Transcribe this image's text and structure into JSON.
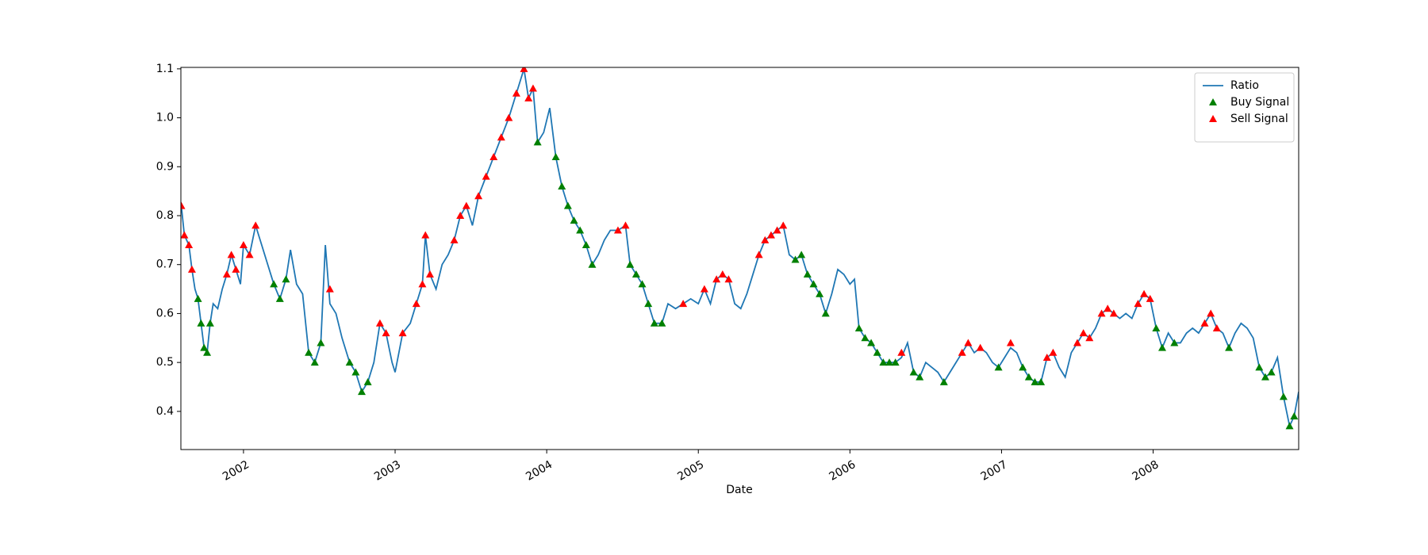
{
  "chart_data": {
    "type": "line",
    "xlabel": "Date",
    "xlim": [
      2001.587,
      2008.96
    ],
    "xticks": [
      2002,
      2003,
      2004,
      2005,
      2006,
      2007,
      2008
    ],
    "ylim": [
      0.322,
      1.103
    ],
    "yticks": [
      0.4,
      0.5,
      0.6,
      0.7,
      0.8,
      0.9,
      {
        "value": 1,
        "label": "1.0"
      },
      1.1
    ],
    "legend": "upper right",
    "series": [
      {
        "name": "Ratio",
        "type": "line",
        "color": "#1f77b4",
        "x": [
          2001.59,
          2001.61,
          2001.64,
          2001.66,
          2001.68,
          2001.7,
          2001.72,
          2001.74,
          2001.76,
          2001.78,
          2001.8,
          2001.83,
          2001.86,
          2001.89,
          2001.92,
          2001.95,
          2001.98,
          2002.0,
          2002.04,
          2002.08,
          2002.12,
          2002.16,
          2002.2,
          2002.24,
          2002.28,
          2002.31,
          2002.35,
          2002.39,
          2002.43,
          2002.47,
          2002.51,
          2002.54,
          2002.57,
          2002.61,
          2002.65,
          2002.7,
          2002.74,
          2002.78,
          2002.82,
          2002.86,
          2002.9,
          2002.94,
          2002.98,
          2003.0,
          2003.05,
          2003.1,
          2003.14,
          2003.18,
          2003.2,
          2003.23,
          2003.27,
          2003.31,
          2003.35,
          2003.39,
          2003.43,
          2003.47,
          2003.51,
          2003.55,
          2003.6,
          2003.65,
          2003.7,
          2003.75,
          2003.8,
          2003.85,
          2003.88,
          2003.91,
          2003.94,
          2003.98,
          2004.02,
          2004.06,
          2004.1,
          2004.14,
          2004.18,
          2004.22,
          2004.26,
          2004.3,
          2004.34,
          2004.38,
          2004.42,
          2004.47,
          2004.52,
          2004.55,
          2004.59,
          2004.63,
          2004.67,
          2004.71,
          2004.76,
          2004.8,
          2004.85,
          2004.9,
          2004.95,
          2005.0,
          2005.04,
          2005.08,
          2005.12,
          2005.16,
          2005.2,
          2005.24,
          2005.28,
          2005.32,
          2005.36,
          2005.4,
          2005.44,
          2005.48,
          2005.52,
          2005.56,
          2005.6,
          2005.64,
          2005.68,
          2005.72,
          2005.76,
          2005.8,
          2005.84,
          2005.88,
          2005.92,
          2005.96,
          2006.0,
          2006.03,
          2006.06,
          2006.1,
          2006.14,
          2006.18,
          2006.22,
          2006.26,
          2006.3,
          2006.34,
          2006.38,
          2006.42,
          2006.46,
          2006.5,
          2006.54,
          2006.58,
          2006.62,
          2006.66,
          2006.7,
          2006.74,
          2006.78,
          2006.82,
          2006.86,
          2006.9,
          2006.94,
          2006.98,
          2007.02,
          2007.06,
          2007.1,
          2007.14,
          2007.18,
          2007.22,
          2007.26,
          2007.3,
          2007.34,
          2007.38,
          2007.42,
          2007.46,
          2007.5,
          2007.54,
          2007.58,
          2007.62,
          2007.66,
          2007.7,
          2007.74,
          2007.78,
          2007.82,
          2007.86,
          2007.9,
          2007.94,
          2007.98,
          2008.02,
          2008.06,
          2008.1,
          2008.14,
          2008.18,
          2008.22,
          2008.26,
          2008.3,
          2008.34,
          2008.38,
          2008.42,
          2008.46,
          2008.5,
          2008.54,
          2008.58,
          2008.62,
          2008.66,
          2008.7,
          2008.74,
          2008.78,
          2008.82,
          2008.86,
          2008.9,
          2008.93,
          2008.96
        ],
        "values": [
          0.82,
          0.76,
          0.74,
          0.69,
          0.65,
          0.63,
          0.58,
          0.53,
          0.52,
          0.58,
          0.62,
          0.61,
          0.65,
          0.68,
          0.72,
          0.69,
          0.66,
          0.74,
          0.72,
          0.78,
          0.74,
          0.7,
          0.66,
          0.63,
          0.67,
          0.73,
          0.66,
          0.64,
          0.52,
          0.5,
          0.54,
          0.74,
          0.62,
          0.6,
          0.55,
          0.5,
          0.48,
          0.44,
          0.46,
          0.5,
          0.58,
          0.56,
          0.5,
          0.48,
          0.56,
          0.58,
          0.62,
          0.66,
          0.76,
          0.68,
          0.65,
          0.7,
          0.72,
          0.75,
          0.8,
          0.82,
          0.78,
          0.84,
          0.88,
          0.92,
          0.96,
          1.0,
          1.05,
          1.1,
          1.04,
          1.06,
          0.95,
          0.97,
          1.02,
          0.92,
          0.86,
          0.82,
          0.79,
          0.77,
          0.74,
          0.7,
          0.72,
          0.75,
          0.77,
          0.77,
          0.78,
          0.7,
          0.68,
          0.66,
          0.62,
          0.58,
          0.58,
          0.62,
          0.61,
          0.62,
          0.63,
          0.62,
          0.65,
          0.62,
          0.67,
          0.68,
          0.67,
          0.62,
          0.61,
          0.64,
          0.68,
          0.72,
          0.75,
          0.76,
          0.77,
          0.78,
          0.72,
          0.71,
          0.72,
          0.68,
          0.66,
          0.64,
          0.6,
          0.64,
          0.69,
          0.68,
          0.66,
          0.67,
          0.57,
          0.55,
          0.54,
          0.52,
          0.5,
          0.5,
          0.5,
          0.51,
          0.54,
          0.48,
          0.47,
          0.5,
          0.49,
          0.48,
          0.46,
          0.48,
          0.5,
          0.52,
          0.54,
          0.52,
          0.53,
          0.52,
          0.5,
          0.49,
          0.51,
          0.53,
          0.52,
          0.49,
          0.47,
          0.46,
          0.46,
          0.51,
          0.52,
          0.49,
          0.47,
          0.52,
          0.54,
          0.56,
          0.55,
          0.57,
          0.6,
          0.61,
          0.6,
          0.59,
          0.6,
          0.59,
          0.62,
          0.64,
          0.63,
          0.57,
          0.53,
          0.56,
          0.54,
          0.54,
          0.56,
          0.57,
          0.56,
          0.58,
          0.6,
          0.57,
          0.56,
          0.53,
          0.56,
          0.58,
          0.57,
          0.55,
          0.49,
          0.47,
          0.48,
          0.51,
          0.43,
          0.37,
          0.39,
          0.44
        ]
      },
      {
        "name": "Buy Signal",
        "type": "scatter",
        "color": "#008000",
        "x": [
          2001.7,
          2001.72,
          2001.74,
          2001.76,
          2001.78,
          2002.2,
          2002.24,
          2002.28,
          2002.43,
          2002.47,
          2002.51,
          2002.7,
          2002.74,
          2002.78,
          2002.82,
          2003.94,
          2004.06,
          2004.1,
          2004.14,
          2004.18,
          2004.22,
          2004.26,
          2004.3,
          2004.55,
          2004.59,
          2004.63,
          2004.67,
          2004.71,
          2004.76,
          2005.64,
          2005.68,
          2005.72,
          2005.76,
          2005.8,
          2005.84,
          2006.06,
          2006.1,
          2006.14,
          2006.18,
          2006.22,
          2006.26,
          2006.3,
          2006.42,
          2006.46,
          2006.62,
          2006.98,
          2007.14,
          2007.18,
          2007.22,
          2007.26,
          2008.02,
          2008.06,
          2008.14,
          2008.5,
          2008.7,
          2008.74,
          2008.78,
          2008.86,
          2008.9,
          2008.93
        ],
        "values": [
          0.63,
          0.58,
          0.53,
          0.52,
          0.58,
          0.66,
          0.63,
          0.67,
          0.52,
          0.5,
          0.54,
          0.5,
          0.48,
          0.44,
          0.46,
          0.95,
          0.92,
          0.86,
          0.82,
          0.79,
          0.77,
          0.74,
          0.7,
          0.7,
          0.68,
          0.66,
          0.62,
          0.58,
          0.58,
          0.71,
          0.72,
          0.68,
          0.66,
          0.64,
          0.6,
          0.57,
          0.55,
          0.54,
          0.52,
          0.5,
          0.5,
          0.5,
          0.48,
          0.47,
          0.46,
          0.49,
          0.49,
          0.47,
          0.46,
          0.46,
          0.57,
          0.53,
          0.54,
          0.53,
          0.49,
          0.47,
          0.48,
          0.43,
          0.37,
          0.39
        ]
      },
      {
        "name": "Sell Signal",
        "type": "scatter",
        "color": "#ff0000",
        "x": [
          2001.59,
          2001.61,
          2001.64,
          2001.66,
          2001.89,
          2001.92,
          2001.95,
          2002.0,
          2002.04,
          2002.08,
          2002.57,
          2002.9,
          2002.94,
          2003.05,
          2003.14,
          2003.18,
          2003.2,
          2003.23,
          2003.39,
          2003.43,
          2003.47,
          2003.55,
          2003.6,
          2003.65,
          2003.7,
          2003.75,
          2003.8,
          2003.85,
          2003.88,
          2003.91,
          2004.47,
          2004.52,
          2004.9,
          2005.04,
          2005.12,
          2005.16,
          2005.2,
          2005.4,
          2005.44,
          2005.48,
          2005.52,
          2005.56,
          2006.34,
          2006.74,
          2006.78,
          2006.86,
          2007.06,
          2007.3,
          2007.34,
          2007.5,
          2007.54,
          2007.58,
          2007.66,
          2007.7,
          2007.74,
          2007.9,
          2007.94,
          2007.98,
          2008.34,
          2008.38,
          2008.42
        ],
        "values": [
          0.82,
          0.76,
          0.74,
          0.69,
          0.68,
          0.72,
          0.69,
          0.74,
          0.72,
          0.78,
          0.65,
          0.58,
          0.56,
          0.56,
          0.62,
          0.66,
          0.76,
          0.68,
          0.75,
          0.8,
          0.82,
          0.84,
          0.88,
          0.92,
          0.96,
          1.0,
          1.05,
          1.1,
          1.04,
          1.06,
          0.77,
          0.78,
          0.62,
          0.65,
          0.67,
          0.68,
          0.67,
          0.72,
          0.75,
          0.76,
          0.77,
          0.78,
          0.52,
          0.52,
          0.54,
          0.53,
          0.54,
          0.51,
          0.52,
          0.54,
          0.56,
          0.55,
          0.6,
          0.61,
          0.6,
          0.62,
          0.64,
          0.63,
          0.58,
          0.6,
          0.57
        ]
      }
    ]
  }
}
